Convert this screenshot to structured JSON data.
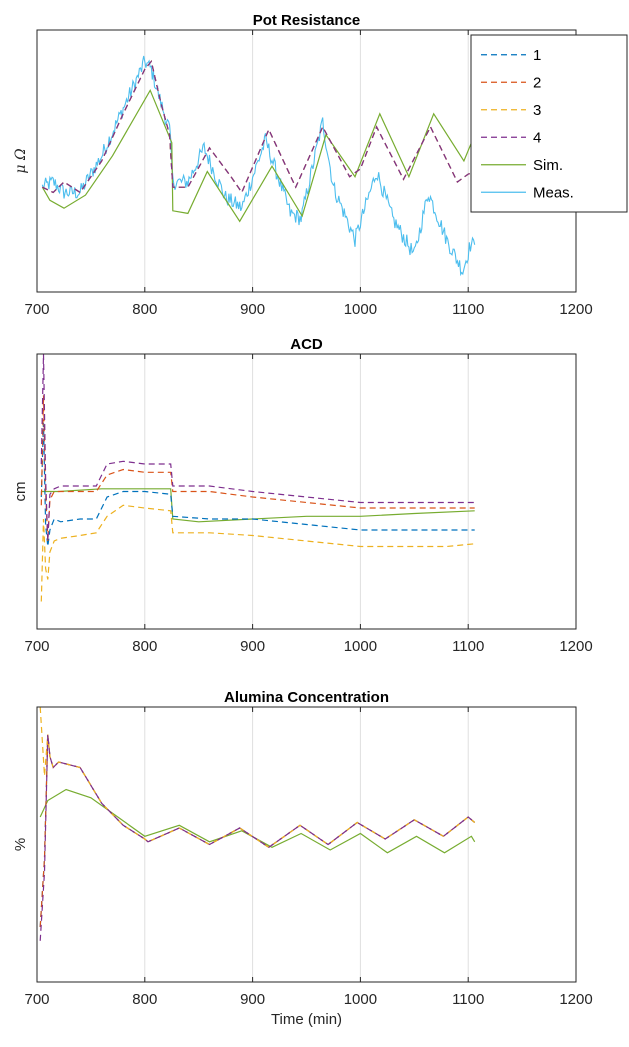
{
  "chart_data": [
    {
      "type": "line",
      "title": "Pot Resistance",
      "xlabel": "",
      "ylabel": "μ Ω",
      "xlim": [
        700,
        1200
      ],
      "xticks": [
        700,
        800,
        900,
        1000,
        1100,
        1200
      ],
      "ylim": [
        0,
        100
      ],
      "y_units": "normalized (no tick labels shown)",
      "grid": "x only",
      "legend": "top-right",
      "legend_entries": [
        "1",
        "2",
        "3",
        "4",
        "Sim.",
        "Meas."
      ],
      "series": [
        {
          "name": "1",
          "color": "#0072BD",
          "dash": "dashed",
          "x": [
            705,
            715,
            725,
            740,
            760,
            780,
            800,
            806,
            815,
            823,
            826,
            840,
            860,
            880,
            890,
            915,
            940,
            965,
            990,
            1000,
            1015,
            1040,
            1065,
            1090,
            1100,
            1106
          ],
          "y": [
            40,
            38,
            42,
            38,
            50,
            68,
            85,
            88,
            72,
            60,
            40,
            40,
            55,
            44,
            38,
            62,
            40,
            63,
            44,
            47,
            63,
            43,
            63,
            42,
            45,
            46
          ]
        },
        {
          "name": "2",
          "color": "#D95319",
          "dash": "dashed",
          "x": [
            705,
            715,
            725,
            740,
            760,
            780,
            800,
            806,
            815,
            823,
            826,
            840,
            860,
            880,
            890,
            915,
            940,
            965,
            990,
            1000,
            1015,
            1040,
            1065,
            1090,
            1100,
            1106
          ],
          "y": [
            40,
            38,
            42,
            38,
            50,
            68,
            85,
            88,
            72,
            60,
            40,
            40,
            55,
            44,
            38,
            62,
            40,
            63,
            44,
            47,
            63,
            43,
            63,
            42,
            45,
            46
          ]
        },
        {
          "name": "3",
          "color": "#EDB120",
          "dash": "dashed",
          "x": [
            705,
            715,
            725,
            740,
            760,
            780,
            800,
            806,
            815,
            823,
            826,
            840,
            860,
            880,
            890,
            915,
            940,
            965,
            990,
            1000,
            1015,
            1040,
            1065,
            1090,
            1100,
            1106
          ],
          "y": [
            40,
            38,
            42,
            38,
            50,
            68,
            85,
            88,
            72,
            60,
            40,
            40,
            55,
            44,
            38,
            62,
            40,
            63,
            44,
            47,
            63,
            43,
            63,
            42,
            45,
            46
          ]
        },
        {
          "name": "4",
          "color": "#7E2F8E",
          "dash": "dashed",
          "x": [
            705,
            715,
            725,
            740,
            760,
            780,
            800,
            806,
            815,
            823,
            826,
            840,
            860,
            880,
            890,
            915,
            940,
            965,
            990,
            1000,
            1015,
            1040,
            1065,
            1090,
            1100,
            1106
          ],
          "y": [
            40,
            38,
            42,
            38,
            50,
            68,
            85,
            88,
            72,
            60,
            40,
            40,
            55,
            44,
            38,
            62,
            40,
            63,
            44,
            47,
            63,
            43,
            63,
            42,
            45,
            46
          ]
        },
        {
          "name": "Sim.",
          "color": "#77AC30",
          "dash": "solid",
          "x": [
            705,
            712,
            725,
            745,
            770,
            805,
            825,
            826,
            840,
            858,
            888,
            918,
            946,
            968,
            995,
            1018,
            1045,
            1068,
            1096,
            1106
          ],
          "y": [
            40,
            35,
            32,
            37,
            52,
            77,
            57,
            31,
            30,
            46,
            27,
            48,
            29,
            60,
            44,
            68,
            44,
            68,
            50,
            60
          ]
        }
      ],
      "noisy_series": {
        "name": "Meas.",
        "color": "#4DBEEE",
        "dash": "solid",
        "x": [
          705,
          715,
          725,
          740,
          760,
          780,
          800,
          806,
          815,
          823,
          826,
          840,
          855,
          865,
          875,
          890,
          912,
          935,
          945,
          965,
          975,
          995,
          1015,
          1030,
          1050,
          1063,
          1080,
          1095,
          1102,
          1106
        ],
        "y": [
          40,
          42,
          38,
          38,
          52,
          70,
          88,
          85,
          72,
          62,
          42,
          42,
          55,
          45,
          36,
          32,
          58,
          30,
          28,
          65,
          40,
          20,
          46,
          28,
          14,
          38,
          20,
          8,
          18,
          18
        ],
        "noise_amplitude": 3
      }
    },
    {
      "type": "line",
      "title": "ACD",
      "xlabel": "",
      "ylabel": "cm",
      "xlim": [
        700,
        1200
      ],
      "xticks": [
        700,
        800,
        900,
        1000,
        1100,
        1200
      ],
      "ylim": [
        0,
        100
      ],
      "y_units": "normalized (no tick labels shown)",
      "grid": "x only",
      "series": [
        {
          "name": "1",
          "color": "#0072BD",
          "dash": "dashed",
          "x": [
            704,
            706,
            708,
            710,
            712,
            716,
            722,
            740,
            755,
            765,
            780,
            800,
            824,
            826,
            860,
            900,
            950,
            1000,
            1040,
            1080,
            1106
          ],
          "y": [
            48,
            75,
            38,
            30,
            36,
            40,
            39,
            40,
            40,
            48,
            50,
            50,
            49,
            41,
            40,
            40,
            38,
            36,
            36,
            36,
            36
          ]
        },
        {
          "name": "2",
          "color": "#D95319",
          "dash": "dashed",
          "x": [
            704,
            706,
            708,
            710,
            712,
            716,
            722,
            740,
            755,
            765,
            780,
            800,
            824,
            826,
            860,
            900,
            950,
            1000,
            1040,
            1080,
            1106
          ],
          "y": [
            45,
            85,
            50,
            32,
            47,
            50,
            50,
            50,
            50,
            56,
            58,
            57,
            57,
            50,
            50,
            48,
            46,
            44,
            44,
            44,
            44
          ]
        },
        {
          "name": "3",
          "color": "#EDB120",
          "dash": "dashed",
          "x": [
            704,
            706,
            708,
            710,
            712,
            716,
            722,
            740,
            755,
            765,
            780,
            800,
            824,
            826,
            860,
            900,
            950,
            1000,
            1040,
            1080,
            1106
          ],
          "y": [
            10,
            40,
            22,
            18,
            28,
            32,
            33,
            34,
            35,
            41,
            45,
            44,
            43,
            35,
            35,
            34,
            32,
            30,
            30,
            30,
            31
          ]
        },
        {
          "name": "4",
          "color": "#7E2F8E",
          "dash": "dashed",
          "x": [
            704,
            706,
            708,
            710,
            712,
            716,
            722,
            740,
            755,
            765,
            780,
            800,
            824,
            826,
            860,
            900,
            950,
            1000,
            1040,
            1080,
            1106
          ],
          "y": [
            60,
            100,
            55,
            32,
            49,
            51,
            52,
            52,
            52,
            60,
            61,
            60,
            60,
            52,
            52,
            50,
            48,
            46,
            46,
            46,
            46
          ]
        },
        {
          "name": "Sim.",
          "color": "#77AC30",
          "dash": "solid",
          "x": [
            704,
            706,
            710,
            720,
            760,
            800,
            824,
            826,
            850,
            900,
            950,
            1000,
            1050,
            1106
          ],
          "y": [
            50,
            50,
            50,
            50,
            51,
            51,
            51,
            40,
            39,
            40,
            41,
            41,
            42,
            43
          ]
        }
      ]
    },
    {
      "type": "line",
      "title": "Alumina Concentration",
      "xlabel": "Time (min)",
      "ylabel": "%",
      "xlim": [
        700,
        1200
      ],
      "xticks": [
        700,
        800,
        900,
        1000,
        1100,
        1200
      ],
      "ylim": [
        0,
        100
      ],
      "y_units": "normalized (no tick labels shown)",
      "grid": "x only",
      "series": [
        {
          "name": "1",
          "color": "#0072BD",
          "dash": "dashed",
          "x": [
            703,
            707,
            710,
            712,
            715,
            720,
            740,
            760,
            780,
            800,
            803,
            832,
            860,
            888,
            915,
            944,
            970,
            997,
            1023,
            1050,
            1077,
            1100,
            1106
          ],
          "y": [
            20,
            45,
            90,
            82,
            78,
            80,
            78,
            65,
            57,
            52,
            51,
            56,
            50,
            56,
            49,
            57,
            50,
            58,
            52,
            59,
            53,
            60,
            58
          ]
        },
        {
          "name": "2",
          "color": "#D95319",
          "dash": "dashed",
          "x": [
            703,
            707,
            710,
            712,
            715,
            720,
            740,
            760,
            780,
            800,
            803,
            832,
            860,
            888,
            915,
            944,
            970,
            997,
            1023,
            1050,
            1077,
            1100,
            1106
          ],
          "y": [
            20,
            45,
            90,
            82,
            78,
            80,
            78,
            65,
            57,
            52,
            51,
            56,
            50,
            56,
            49,
            57,
            50,
            58,
            52,
            59,
            53,
            60,
            58
          ]
        },
        {
          "name": "3",
          "color": "#EDB120",
          "dash": "dashed",
          "x": [
            703,
            707,
            710,
            712,
            715,
            720,
            740,
            760,
            780,
            800,
            803,
            832,
            860,
            888,
            915,
            944,
            970,
            997,
            1023,
            1050,
            1077,
            1100,
            1106
          ],
          "y": [
            100,
            75,
            90,
            82,
            78,
            80,
            78,
            65,
            57,
            52,
            51,
            56,
            50,
            56,
            49,
            57,
            50,
            58,
            52,
            59,
            53,
            60,
            58
          ]
        },
        {
          "name": "4",
          "color": "#7E2F8E",
          "dash": "dashed",
          "x": [
            703,
            707,
            710,
            712,
            715,
            720,
            740,
            760,
            780,
            800,
            803,
            832,
            860,
            888,
            915,
            944,
            970,
            997,
            1023,
            1050,
            1077,
            1100,
            1106
          ],
          "y": [
            15,
            40,
            90,
            82,
            78,
            80,
            78,
            65,
            57,
            52,
            51,
            56,
            50,
            56,
            49,
            57,
            50,
            58,
            52,
            59,
            53,
            60,
            58
          ]
        },
        {
          "name": "Sim.",
          "color": "#77AC30",
          "dash": "solid",
          "x": [
            703,
            710,
            727,
            750,
            775,
            800,
            832,
            860,
            890,
            918,
            945,
            972,
            1000,
            1025,
            1052,
            1078,
            1103,
            1106
          ],
          "y": [
            60,
            66,
            70,
            67,
            60,
            53,
            57,
            51,
            55,
            49,
            54,
            48,
            54,
            47,
            53,
            47,
            53,
            51
          ]
        }
      ]
    }
  ]
}
